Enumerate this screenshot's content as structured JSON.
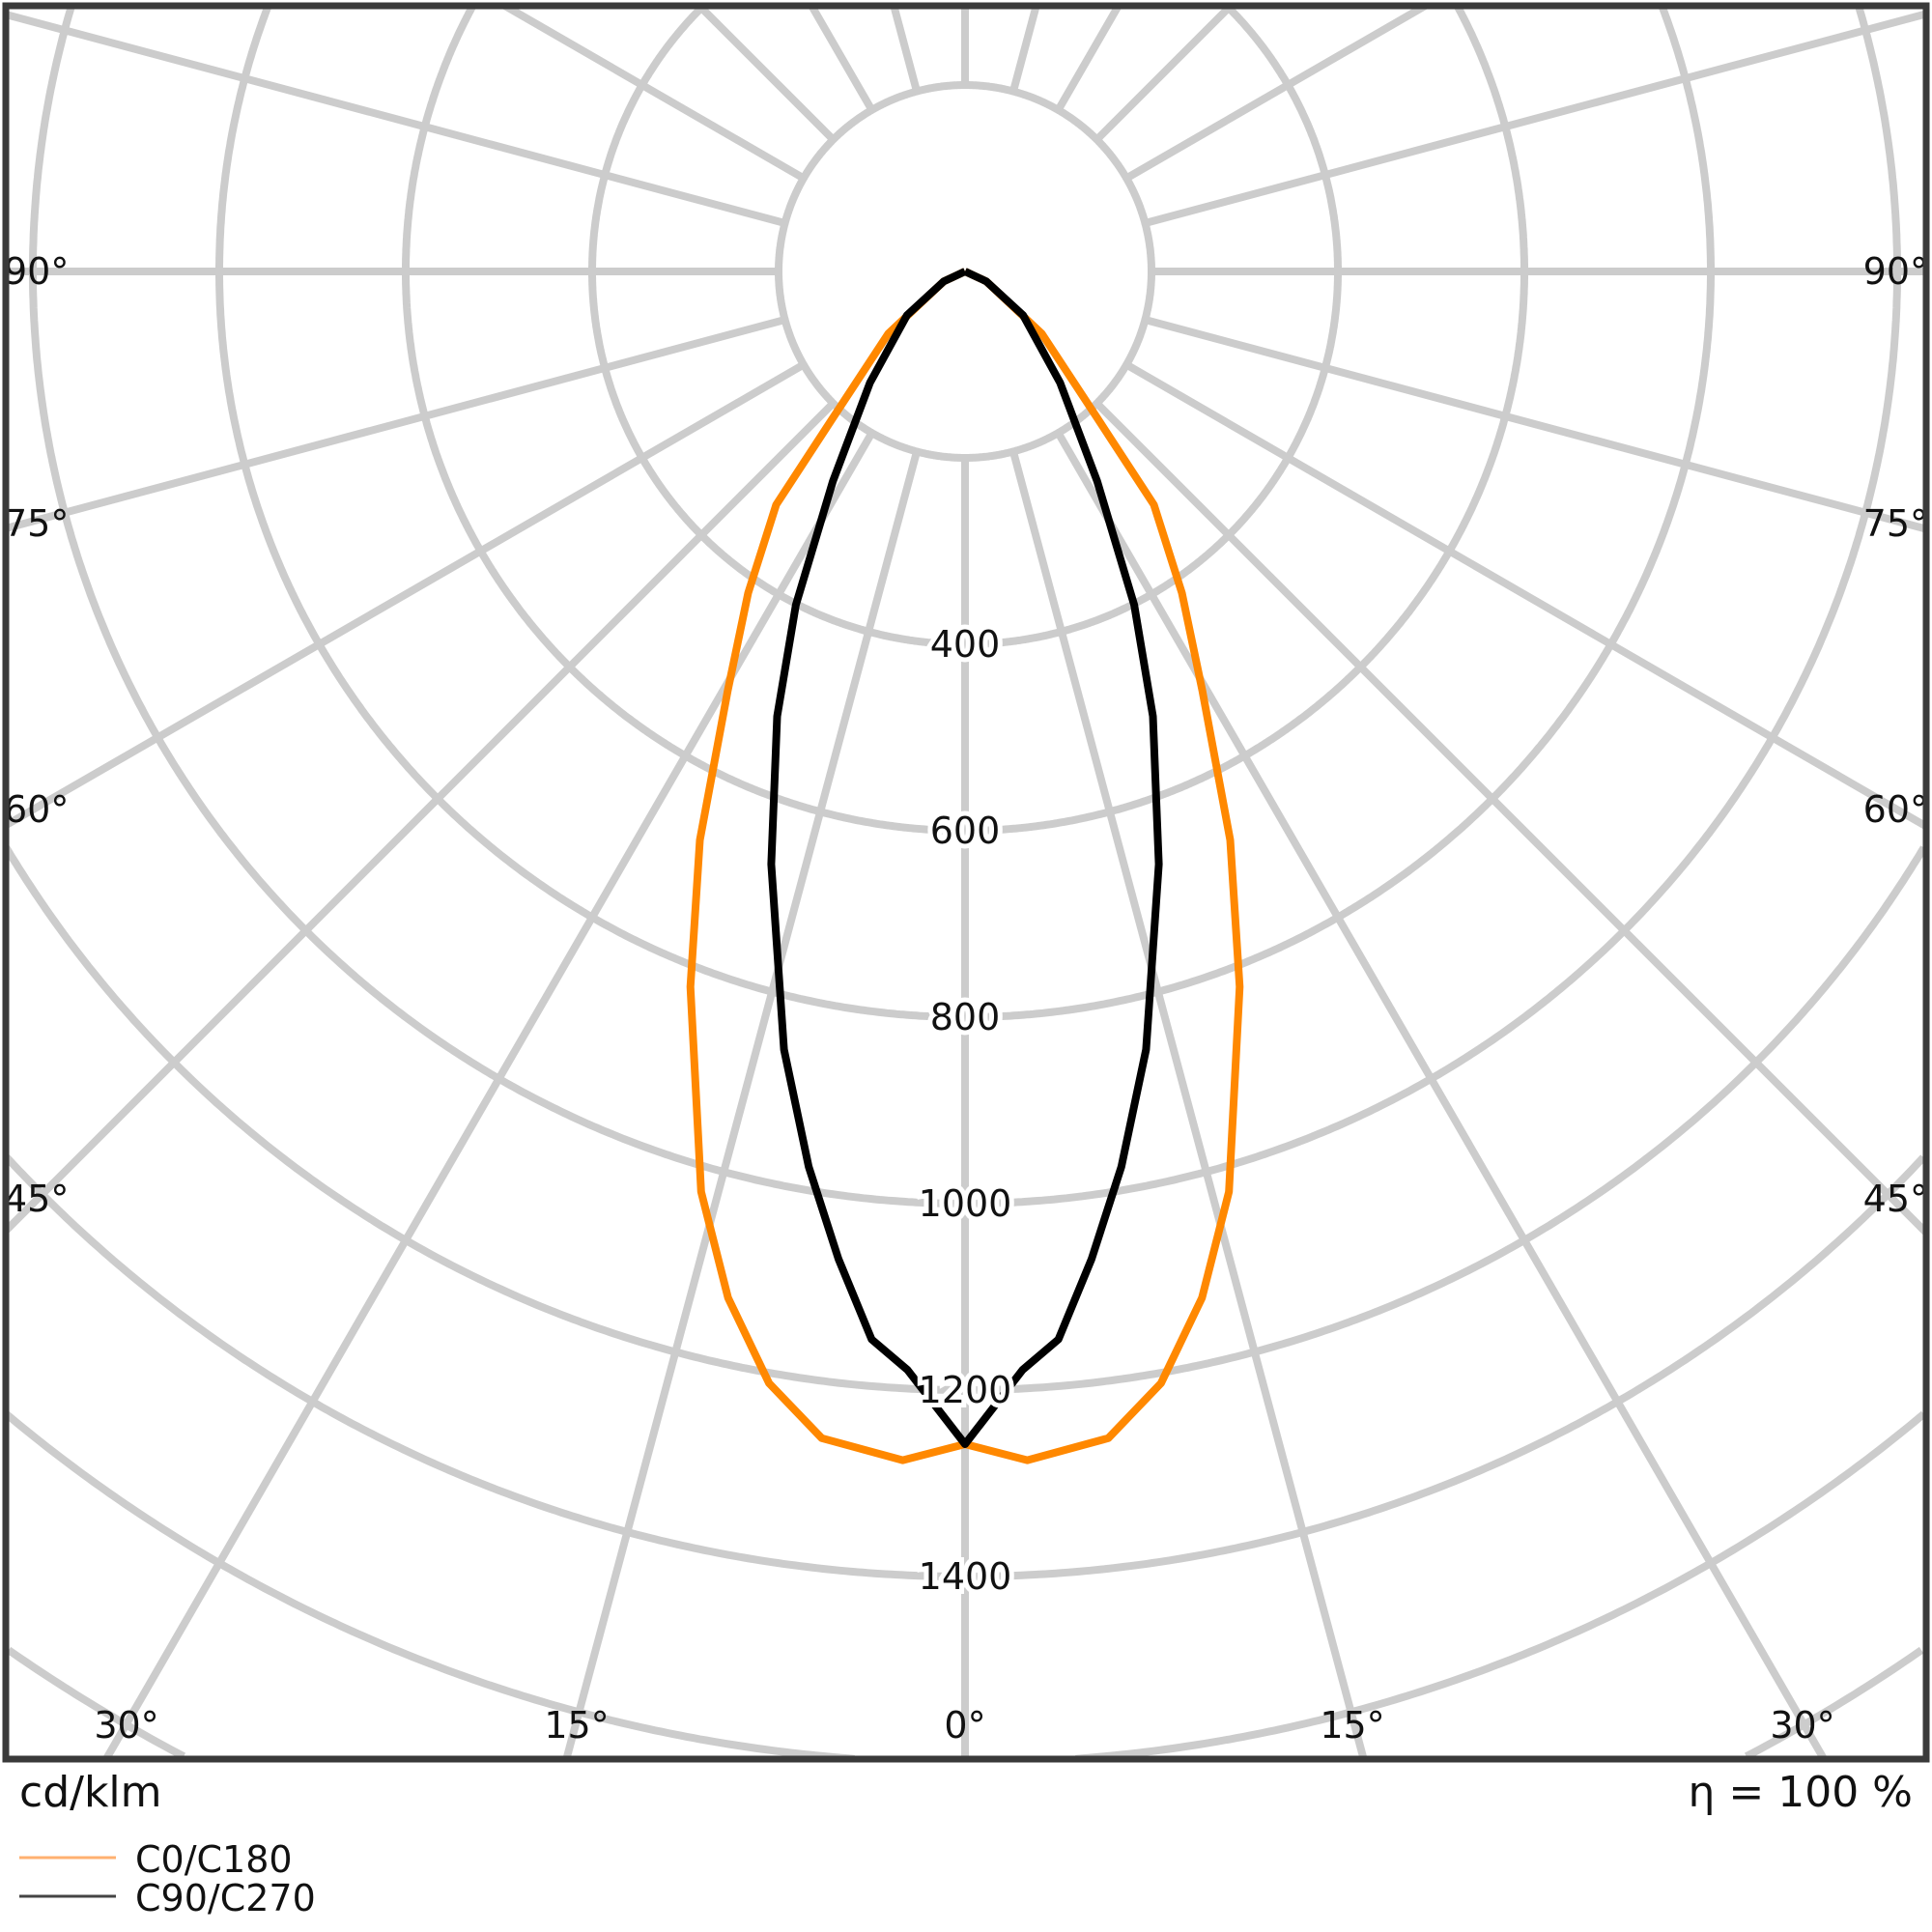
{
  "chart_data": {
    "type": "polar",
    "unit_label": "cd/klm",
    "efficiency_label": "η = 100 %",
    "radial_ticks": [
      200,
      400,
      600,
      800,
      1000,
      1200,
      1400,
      1600,
      1800,
      2000
    ],
    "radial_tick_labels": [
      "400",
      "600",
      "800",
      "1000",
      "1200",
      "1400"
    ],
    "angle_labels_side": [
      "90°",
      "75°",
      "60°",
      "45°"
    ],
    "angle_labels_bottom": [
      "30°",
      "15°",
      "0°",
      "15°",
      "30°"
    ],
    "angle_step_deg": 15,
    "grid": true,
    "legend_position": "bottom-left",
    "series": [
      {
        "name": "C0/C180",
        "color": "#ff8800",
        "gamma": [
          0,
          3,
          7,
          10,
          13,
          16,
          21,
          25,
          29.5,
          34,
          39,
          42,
          51,
          65,
          90
        ],
        "values": [
          1258,
          1277,
          1261,
          1211,
          1130,
          1027,
          822,
          673,
          517,
          416,
          322,
          213,
          106,
          25,
          0
        ]
      },
      {
        "name": "C90/C270",
        "color": "#000000",
        "gamma": [
          0,
          3,
          5,
          7.3,
          9.9,
          13.1,
          18.1,
          22.9,
          26.9,
          32.2,
          40.5,
          53,
          65,
          90
        ],
        "values": [
          1258,
          1180,
          1150,
          1068,
          975,
          857,
          669,
          518,
          401,
          266,
          157,
          78,
          25,
          0
        ]
      }
    ]
  }
}
